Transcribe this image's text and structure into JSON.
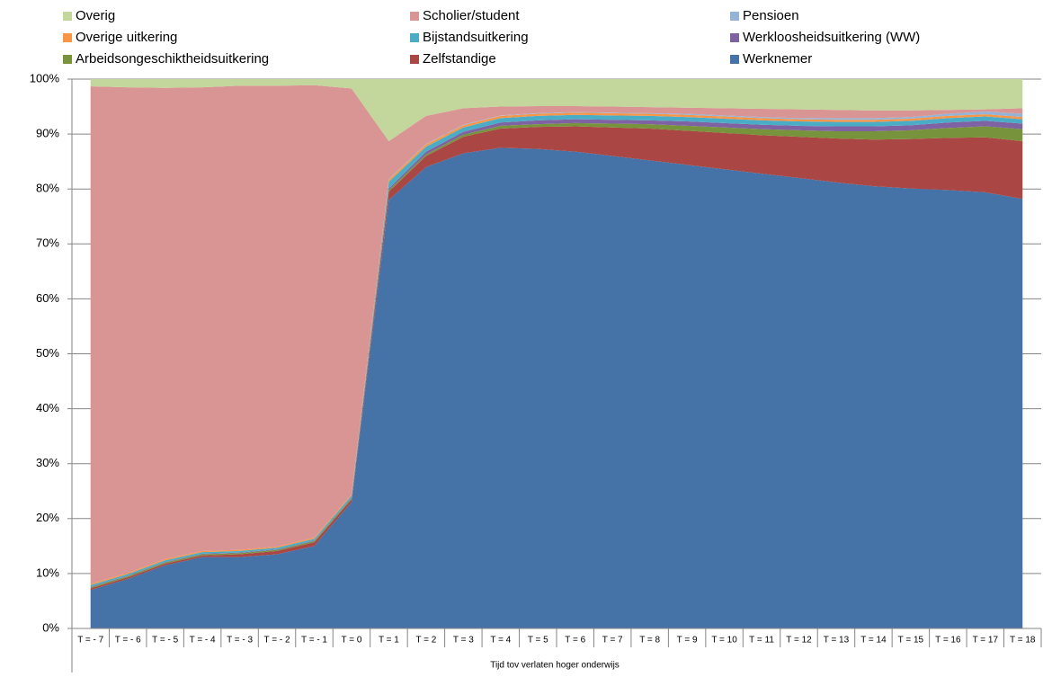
{
  "chart_data": {
    "type": "stacked_area",
    "x_label": "Tijd tov verlaten hoger onderwijs",
    "categories": [
      "T = - 7",
      "T = - 6",
      "T = - 5",
      "T = - 4",
      "T = - 3",
      "T = - 2",
      "T = - 1",
      "T = 0",
      "T = 1",
      "T = 2",
      "T = 3",
      "T = 4",
      "T = 5",
      "T = 6",
      "T = 7",
      "T = 8",
      "T = 9",
      "T = 10",
      "T = 11",
      "T = 12",
      "T = 13",
      "T = 14",
      "T = 15",
      "T = 16",
      "T = 17",
      "T = 18"
    ],
    "series": [
      {
        "name": "Werknemer",
        "color": "#4572a7",
        "values": [
          7,
          9,
          11.5,
          13,
          13,
          13.5,
          15,
          23,
          78,
          84,
          86.5,
          87.5,
          87.3,
          86.8,
          86,
          85.2,
          84.4,
          83.6,
          82.8,
          82,
          81.2,
          80.5,
          80.1,
          79.8,
          79.4,
          78.2
        ]
      },
      {
        "name": "Zelfstandige",
        "color": "#aa4643",
        "values": [
          0.3,
          0.3,
          0.3,
          0.3,
          0.5,
          0.6,
          0.7,
          0.5,
          1.5,
          2,
          3,
          3.5,
          4,
          4.6,
          5.2,
          5.8,
          6.2,
          6.6,
          7,
          7.5,
          8,
          8.5,
          9,
          9.5,
          10,
          10.5
        ]
      },
      {
        "name": "Arbeidsongeschiktheidsuitkering",
        "color": "#77933c",
        "values": [
          0.2,
          0.2,
          0.2,
          0.2,
          0.2,
          0.2,
          0.2,
          0.2,
          0.3,
          0.3,
          0.4,
          0.5,
          0.5,
          0.6,
          0.7,
          0.8,
          0.9,
          1.0,
          1.1,
          1.2,
          1.3,
          1.5,
          1.6,
          1.8,
          2.0,
          2.2
        ]
      },
      {
        "name": "Werkloosheidsuitkering (WW)",
        "color": "#7f62a1",
        "values": [
          0.1,
          0.1,
          0.1,
          0.1,
          0.1,
          0.1,
          0.1,
          0.1,
          0.3,
          0.5,
          0.5,
          0.6,
          0.7,
          0.7,
          0.7,
          0.7,
          0.8,
          0.8,
          0.8,
          0.8,
          0.9,
          0.9,
          0.9,
          1.0,
          1.0,
          1.0
        ]
      },
      {
        "name": "Bijstandsuitkering",
        "color": "#4bacc6",
        "values": [
          0.3,
          0.3,
          0.3,
          0.3,
          0.3,
          0.3,
          0.3,
          0.4,
          1.2,
          0.9,
          0.8,
          0.8,
          0.8,
          0.8,
          0.8,
          0.8,
          0.8,
          0.8,
          0.8,
          0.8,
          0.8,
          0.8,
          0.8,
          0.8,
          0.8,
          0.8
        ]
      },
      {
        "name": "Overige uitkering",
        "color": "#f79646",
        "values": [
          0.2,
          0.2,
          0.2,
          0.2,
          0.2,
          0.2,
          0.2,
          0.2,
          0.4,
          0.4,
          0.4,
          0.4,
          0.4,
          0.4,
          0.4,
          0.4,
          0.4,
          0.4,
          0.4,
          0.4,
          0.4,
          0.4,
          0.4,
          0.4,
          0.4,
          0.4
        ]
      },
      {
        "name": "Pensioen",
        "color": "#95b3d7",
        "values": [
          0,
          0,
          0,
          0,
          0,
          0,
          0,
          0,
          0.1,
          0.1,
          0.1,
          0.1,
          0.1,
          0.1,
          0.1,
          0.1,
          0.2,
          0.2,
          0.2,
          0.2,
          0.3,
          0.3,
          0.3,
          0.4,
          0.5,
          0.6
        ]
      },
      {
        "name": "Scholier/student",
        "color": "#d99594",
        "values": [
          90.6,
          88.4,
          85.8,
          84.4,
          84.5,
          83.9,
          82.4,
          73.9,
          6.9,
          5.1,
          3.0,
          1.6,
          1.3,
          1.1,
          1.1,
          1.1,
          1.1,
          1.3,
          1.5,
          1.6,
          1.5,
          1.4,
          1.2,
          0.7,
          0.4,
          1.0
        ]
      },
      {
        "name": "Overig",
        "color": "#c3d69b",
        "values": [
          1.3,
          1.5,
          1.6,
          1.5,
          1.2,
          1.2,
          1.1,
          1.7,
          11.3,
          6.7,
          5.3,
          5,
          4.9,
          4.9,
          5,
          5.1,
          5.2,
          5.3,
          5.4,
          5.5,
          5.6,
          5.7,
          5.7,
          5.6,
          5.5,
          5.3
        ]
      }
    ],
    "ylim": [
      0,
      100
    ],
    "yticks": [
      {
        "value": 0,
        "label": "0%"
      },
      {
        "value": 10,
        "label": "10%"
      },
      {
        "value": 20,
        "label": "20%"
      },
      {
        "value": 30,
        "label": "30%"
      },
      {
        "value": 40,
        "label": "40%"
      },
      {
        "value": 50,
        "label": "50%"
      },
      {
        "value": 60,
        "label": "60%"
      },
      {
        "value": 70,
        "label": "70%"
      },
      {
        "value": 80,
        "label": "80%"
      },
      {
        "value": 90,
        "label": "90%"
      },
      {
        "value": 100,
        "label": "100%"
      }
    ],
    "grid": true,
    "legend": "top"
  }
}
